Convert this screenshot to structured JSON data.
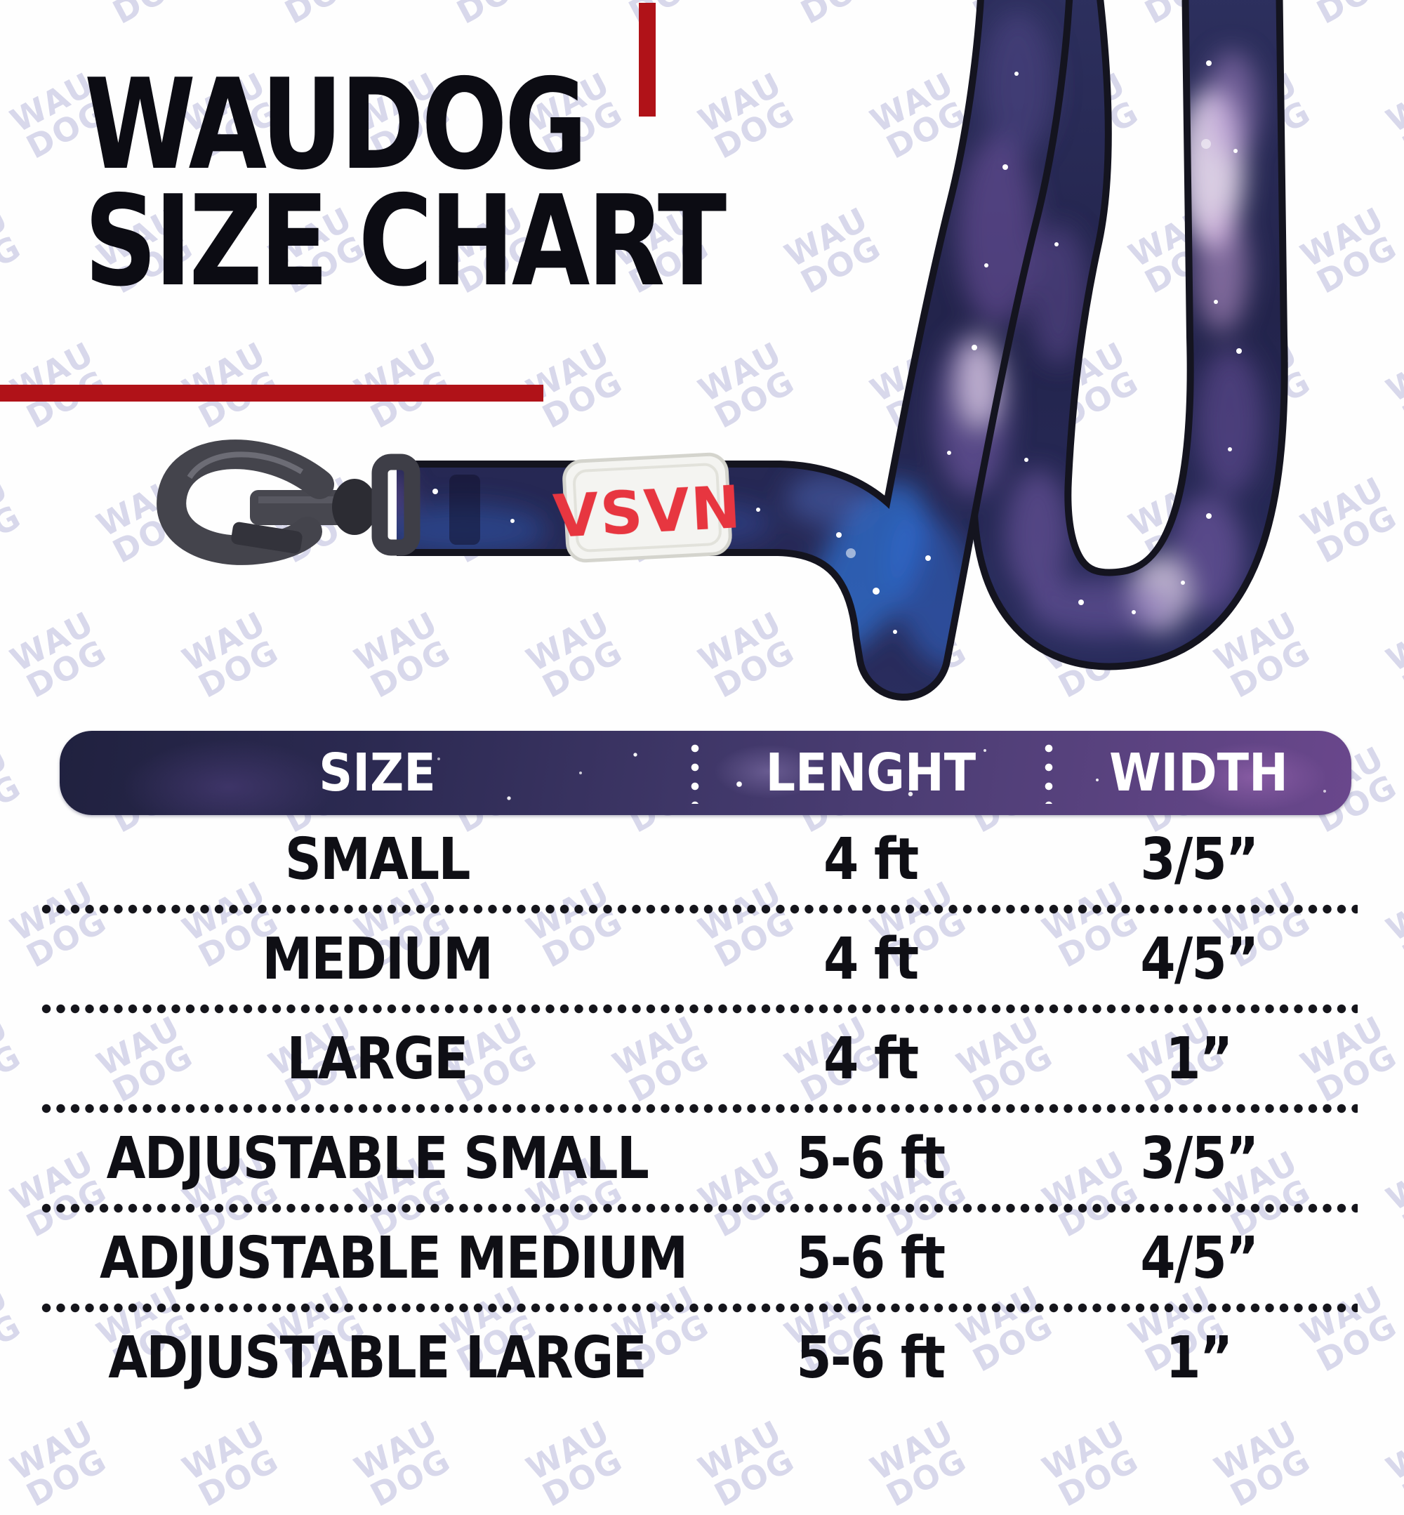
{
  "page": {
    "title_line1": "WAUDOG",
    "title_line2": "SIZE CHART"
  },
  "accent_color": "#b01218",
  "watermark": {
    "text": "WAU\nDOG"
  },
  "leash": {
    "label_text": "VSVN",
    "label_color": "#e73640",
    "strap_style": "galaxy print navy-purple webbing with black edges",
    "hardware": "gunmetal snap hook"
  },
  "table": {
    "columns": [
      "SIZE",
      "LENGHT",
      "WIDTH"
    ],
    "rows": [
      [
        "SMALL",
        "4 ft",
        "3/5”"
      ],
      [
        "MEDIUM",
        "4 ft",
        "4/5”"
      ],
      [
        "LARGE",
        "4 ft",
        "1”"
      ],
      [
        "ADJUSTABLE SMALL",
        "5-6 ft",
        "3/5”"
      ],
      [
        "ADJUSTABLE MEDIUM",
        "5-6 ft",
        "4/5”"
      ],
      [
        "ADJUSTABLE LARGE",
        "5-6 ft",
        "1”"
      ]
    ]
  },
  "chart_data": {
    "type": "table",
    "title": "WAUDOG SIZE CHART",
    "columns": [
      "SIZE",
      "LENGHT",
      "WIDTH"
    ],
    "rows": [
      {
        "size": "SMALL",
        "length": "4 ft",
        "width": "3/5\""
      },
      {
        "size": "MEDIUM",
        "length": "4 ft",
        "width": "4/5\""
      },
      {
        "size": "LARGE",
        "length": "4 ft",
        "width": "1\""
      },
      {
        "size": "ADJUSTABLE SMALL",
        "length": "5-6 ft",
        "width": "3/5\""
      },
      {
        "size": "ADJUSTABLE MEDIUM",
        "length": "5-6 ft",
        "width": "4/5\""
      },
      {
        "size": "ADJUSTABLE LARGE",
        "length": "5-6 ft",
        "width": "1\""
      }
    ]
  }
}
